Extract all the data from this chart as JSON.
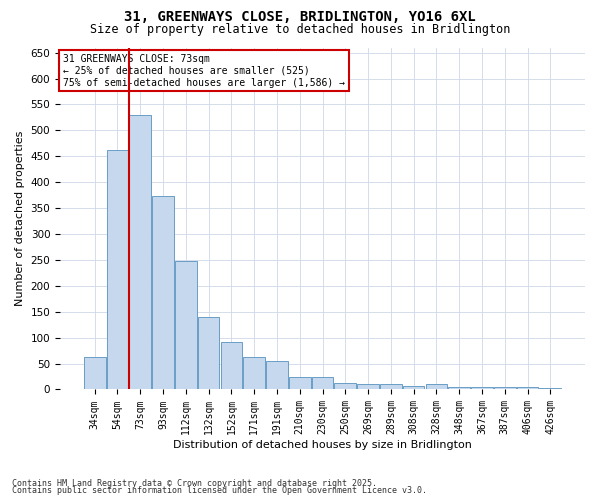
{
  "title_line1": "31, GREENWAYS CLOSE, BRIDLINGTON, YO16 6XL",
  "title_line2": "Size of property relative to detached houses in Bridlington",
  "xlabel": "Distribution of detached houses by size in Bridlington",
  "ylabel": "Number of detached properties",
  "categories": [
    "34sqm",
    "54sqm",
    "73sqm",
    "93sqm",
    "112sqm",
    "132sqm",
    "152sqm",
    "171sqm",
    "191sqm",
    "210sqm",
    "230sqm",
    "250sqm",
    "269sqm",
    "289sqm",
    "308sqm",
    "328sqm",
    "348sqm",
    "367sqm",
    "387sqm",
    "406sqm",
    "426sqm"
  ],
  "values": [
    62,
    463,
    530,
    373,
    248,
    140,
    92,
    63,
    55,
    25,
    25,
    12,
    10,
    10,
    7,
    10,
    4,
    5,
    5,
    5,
    3
  ],
  "bar_color": "#c5d8ed",
  "bar_edge_color": "#6a9ec5",
  "highlight_index": 2,
  "highlight_line_color": "#cc0000",
  "ylim": [
    0,
    660
  ],
  "yticks": [
    0,
    50,
    100,
    150,
    200,
    250,
    300,
    350,
    400,
    450,
    500,
    550,
    600,
    650
  ],
  "annotation_box_text": "31 GREENWAYS CLOSE: 73sqm\n← 25% of detached houses are smaller (525)\n75% of semi-detached houses are larger (1,586) →",
  "annotation_box_color": "#cc0000",
  "annotation_box_facecolor": "#ffffff",
  "footer_line1": "Contains HM Land Registry data © Crown copyright and database right 2025.",
  "footer_line2": "Contains public sector information licensed under the Open Government Licence v3.0.",
  "background_color": "#ffffff",
  "grid_color": "#d0d8e8"
}
